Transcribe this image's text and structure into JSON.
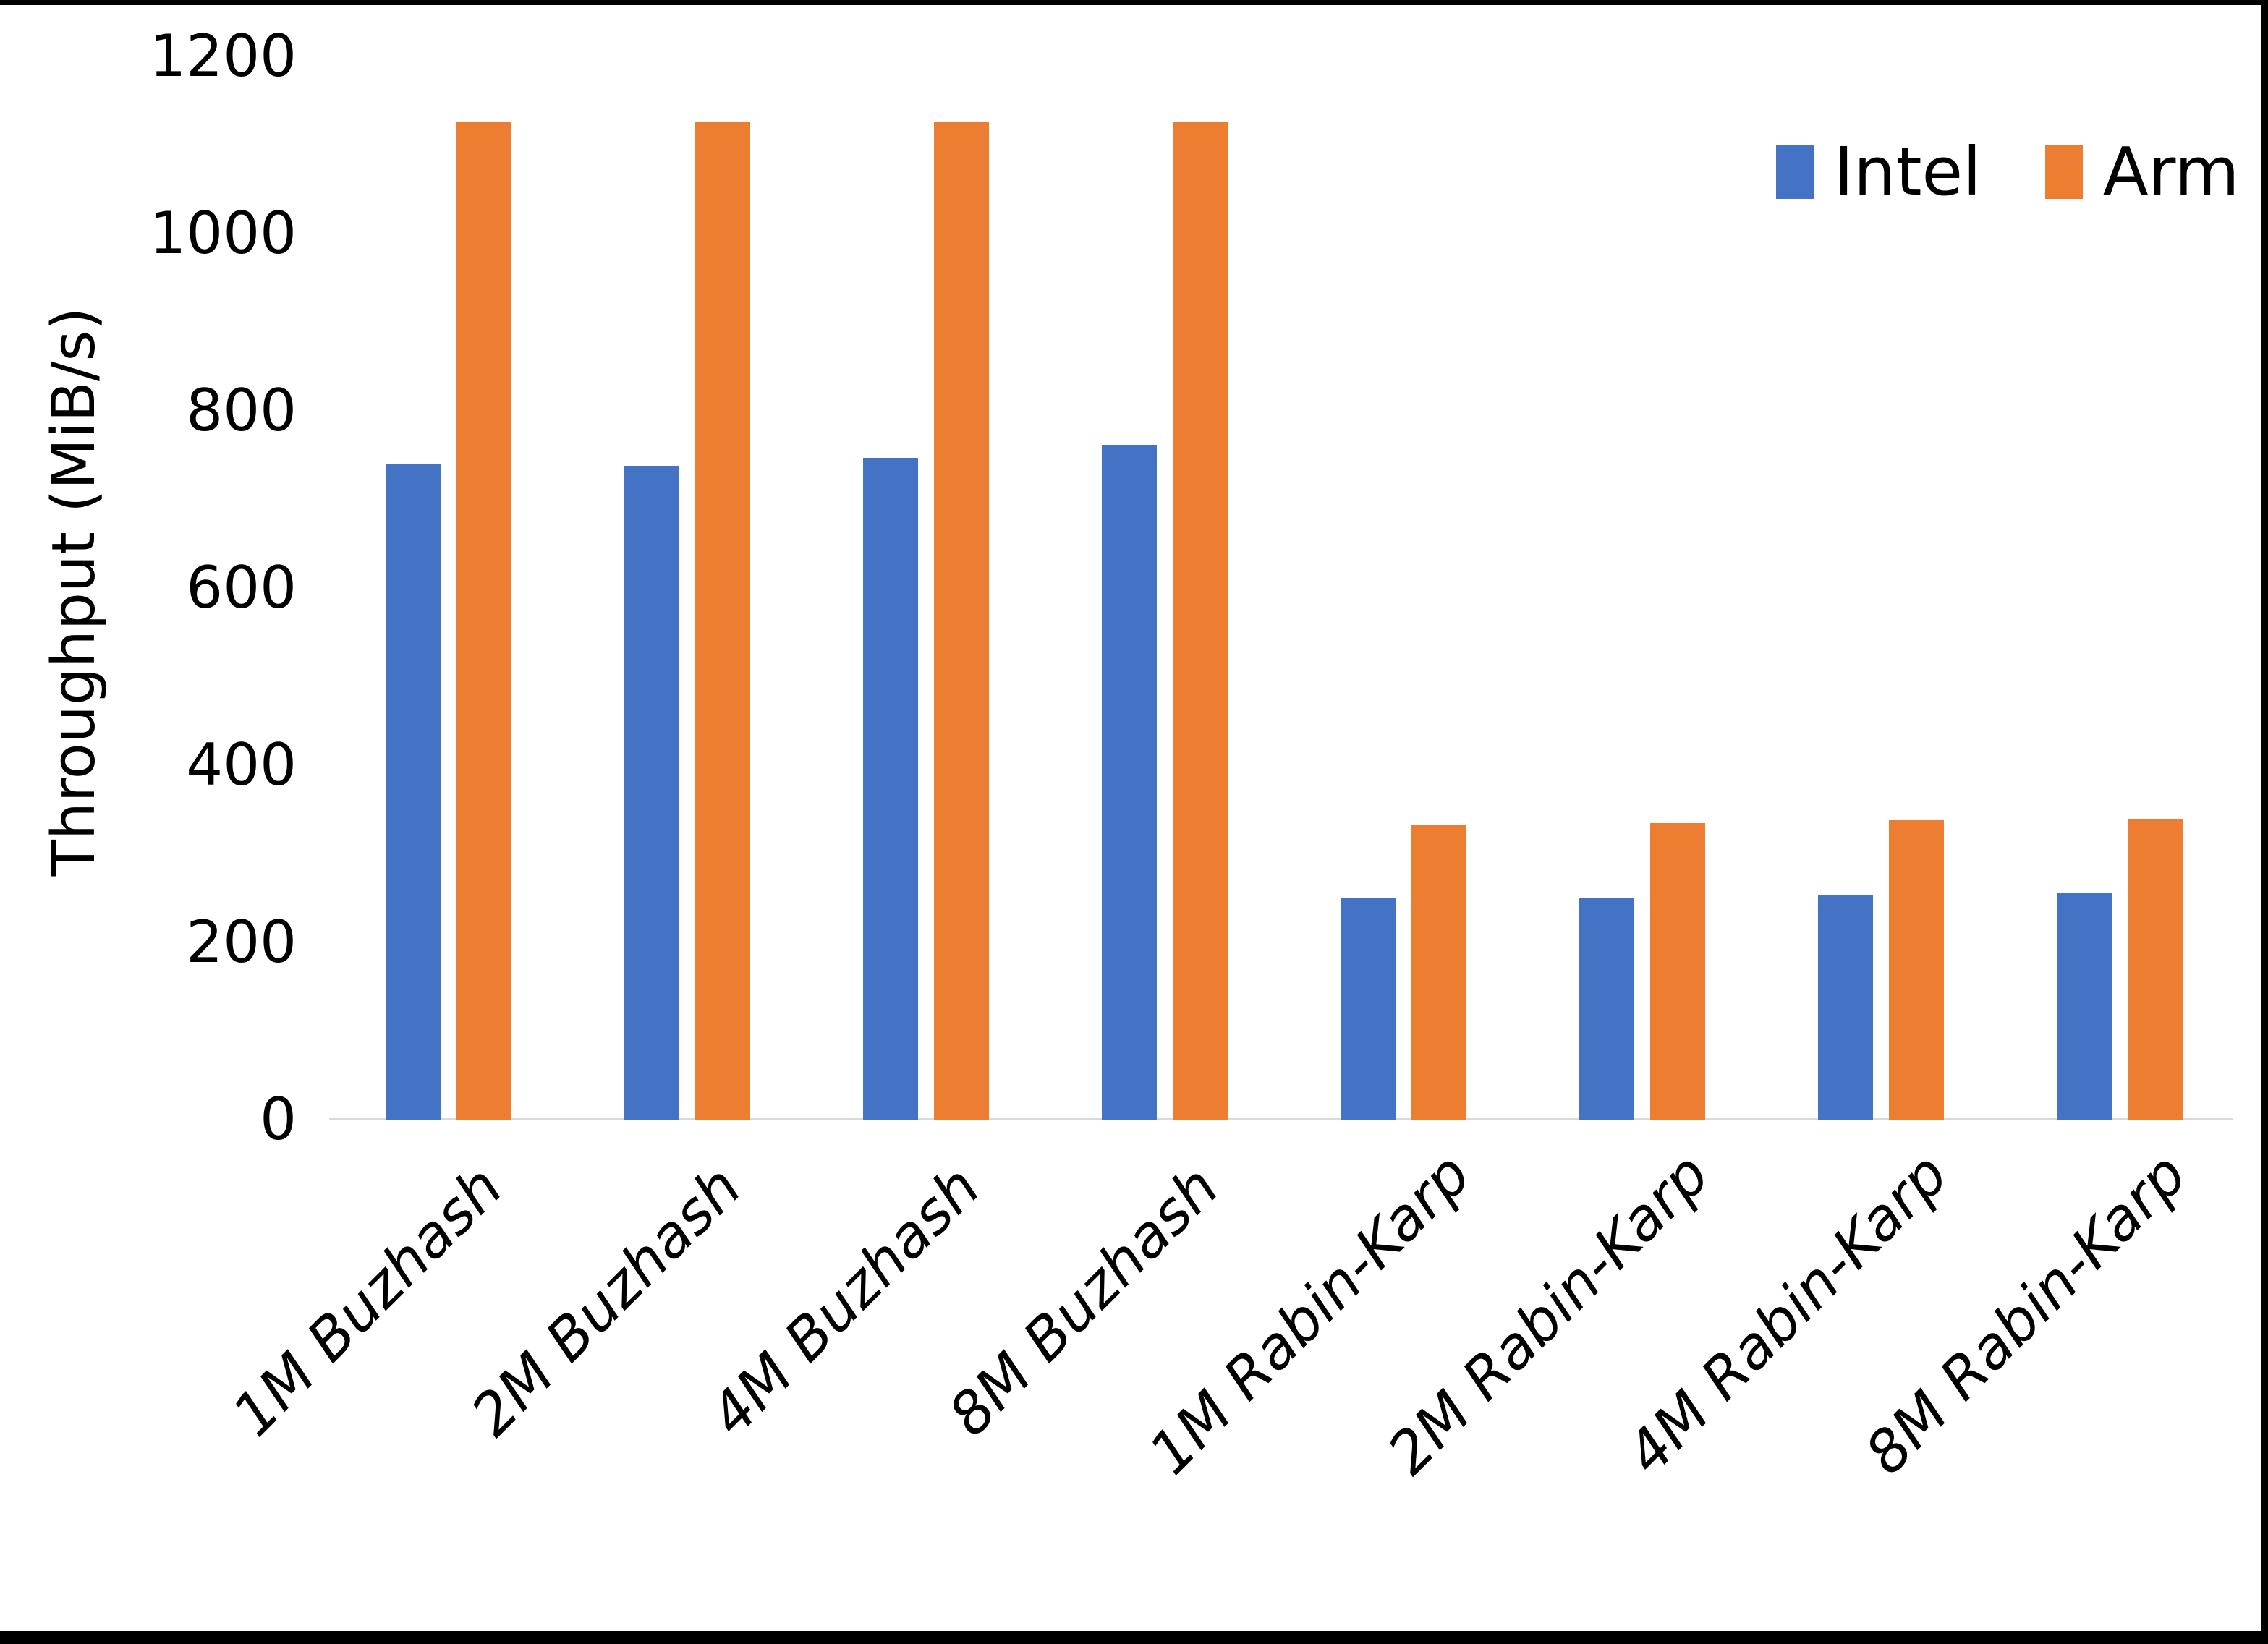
{
  "chart_data": {
    "type": "bar",
    "title": "",
    "xlabel": "",
    "ylabel": "Throughput (MiB/s)",
    "ylim": [
      0,
      1200
    ],
    "yticks": [
      0,
      200,
      400,
      600,
      800,
      1000,
      1200
    ],
    "grid": false,
    "legend_position": "top-right",
    "categories": [
      "1M Buzhash",
      "2M Buzhash",
      "4M Buzhash",
      "8M Buzhash",
      "1M Rabin-Karp",
      "2M Rabin-Karp",
      "4M Rabin-Karp",
      "8M Rabin-Karp"
    ],
    "series": [
      {
        "name": "Intel",
        "color": "#4472c4",
        "values": [
          740,
          738,
          747,
          762,
          250,
          250,
          254,
          256
        ]
      },
      {
        "name": "Arm",
        "color": "#ed7d31",
        "values": [
          1126,
          1126,
          1126,
          1126,
          332,
          335,
          338,
          340
        ]
      }
    ]
  },
  "colors": {
    "background": "#ffffff",
    "axis_line": "#d9d9d9",
    "text": "#000000",
    "frame_border": "#000000"
  }
}
